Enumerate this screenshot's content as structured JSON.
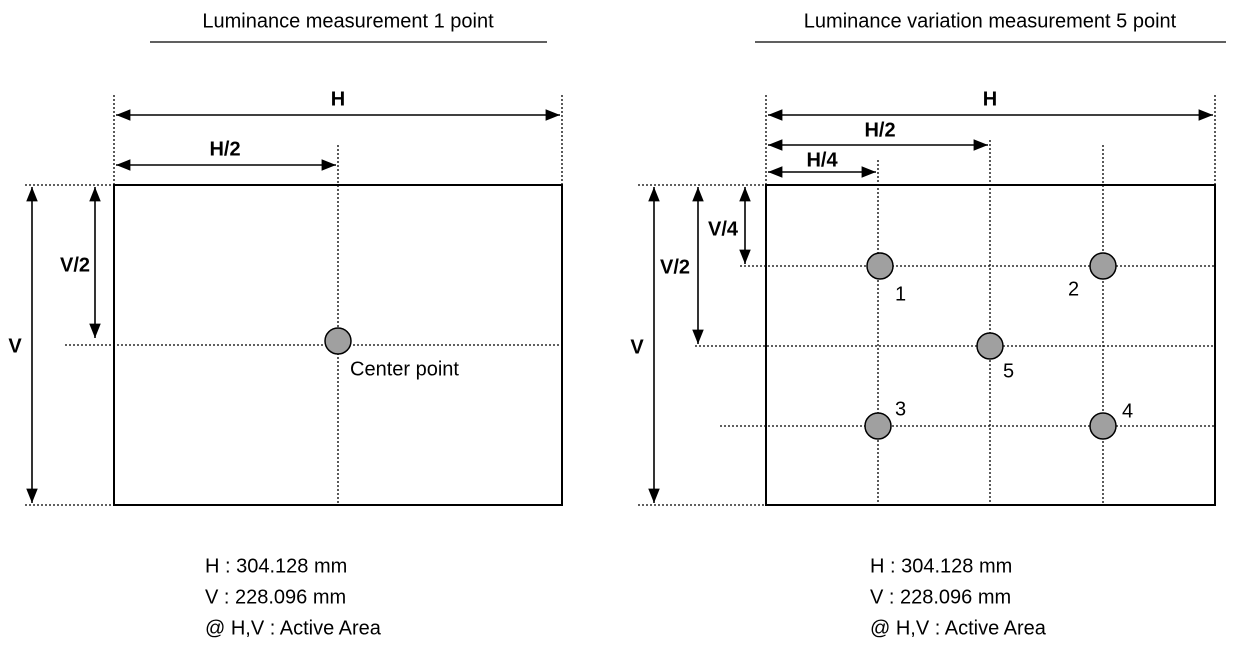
{
  "left": {
    "title": "Luminance measurement 1 point",
    "labels": {
      "h": "H",
      "h_half": "H/2",
      "v": "V",
      "v_half": "V/2"
    },
    "point_label": "Center point",
    "notes": [
      "H : 304.128 mm",
      "V : 228.096 mm",
      "@ H,V : Active Area"
    ]
  },
  "right": {
    "title": "Luminance variation measurement 5 point",
    "labels": {
      "h": "H",
      "h_half": "H/2",
      "h_quarter": "H/4",
      "v": "V",
      "v_half": "V/2",
      "v_quarter": "V/4"
    },
    "points": [
      "1",
      "2",
      "3",
      "4",
      "5"
    ],
    "notes": [
      "H : 304.128 mm",
      "V : 228.096 mm",
      "@ H,V : Active Area"
    ]
  }
}
